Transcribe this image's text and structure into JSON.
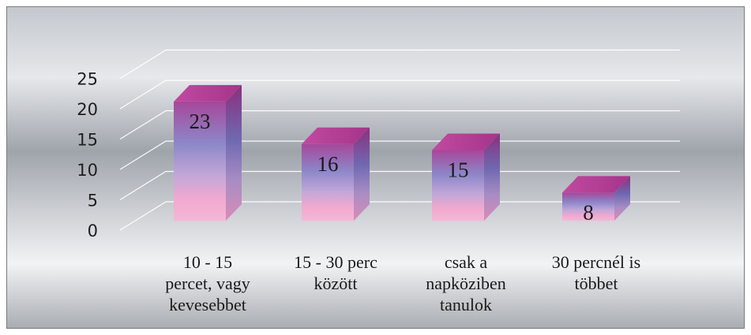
{
  "chart_data": {
    "type": "bar",
    "title": "",
    "xlabel": "",
    "ylabel": "",
    "ylim": [
      0,
      25
    ],
    "yticks": [
      "0",
      "5",
      "10",
      "15",
      "20",
      "25"
    ],
    "grid": true,
    "categories": [
      [
        "10 - 15",
        "percet, vagy",
        "kevesebbet"
      ],
      [
        "15 - 30 perc",
        "között"
      ],
      [
        "csak a",
        "napköziben",
        "tanulok"
      ],
      [
        "30 percnél is",
        "többet"
      ]
    ],
    "values": [
      23,
      16,
      15,
      8
    ],
    "data_labels": [
      "23",
      "16",
      "15",
      "8"
    ]
  },
  "colors": {
    "background_light": "#d9dde2",
    "background_dark": "#8f949c",
    "bar_top": "#b13f92",
    "bar_middle": "#8d86c8",
    "bar_bottom": "#f3a6cc",
    "gridline": "#ffffff"
  }
}
